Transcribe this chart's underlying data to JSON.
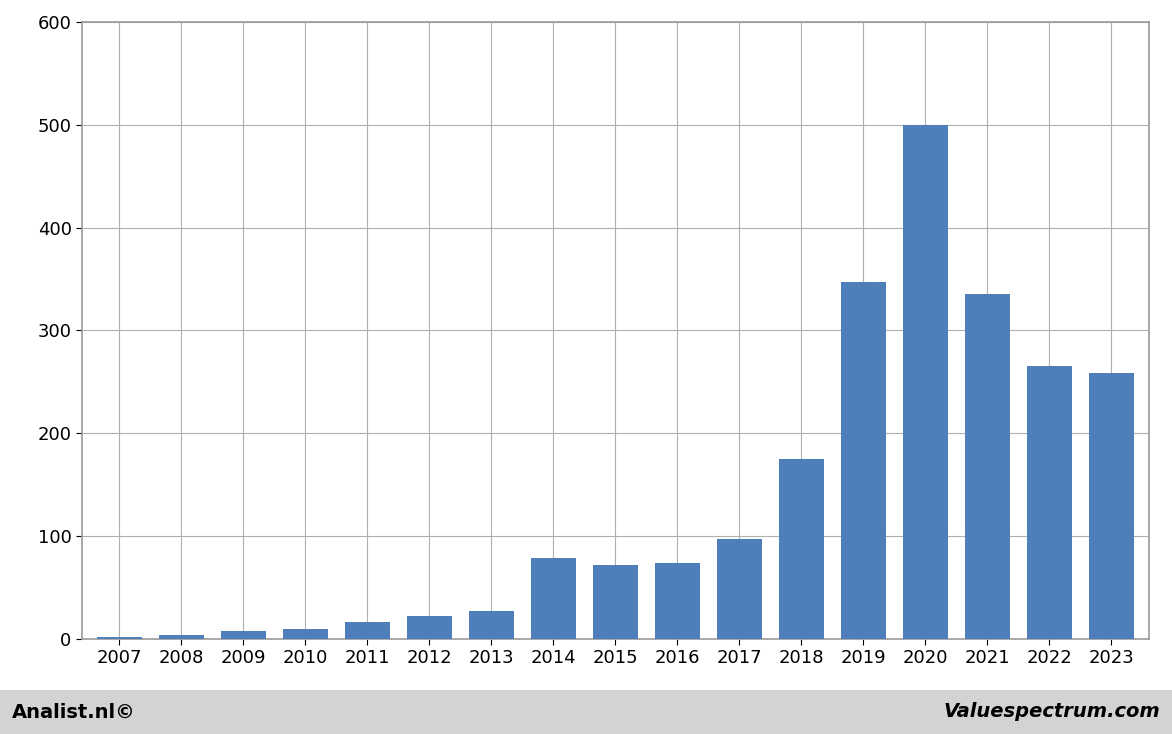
{
  "categories": [
    2007,
    2008,
    2009,
    2010,
    2011,
    2012,
    2013,
    2014,
    2015,
    2016,
    2017,
    2018,
    2019,
    2020,
    2021,
    2022,
    2023
  ],
  "values": [
    2,
    3,
    7,
    9,
    16,
    22,
    27,
    78,
    72,
    74,
    97,
    175,
    347,
    500,
    335,
    265,
    258
  ],
  "bar_color": "#4f7fba",
  "background_color": "#ffffff",
  "plot_bg_color": "#ffffff",
  "footer_bg_color": "#d3d3d3",
  "ylim": [
    0,
    600
  ],
  "yticks": [
    0,
    100,
    200,
    300,
    400,
    500,
    600
  ],
  "grid_color": "#b0b0b0",
  "border_color": "#999999",
  "tick_fontsize": 13,
  "footer_left": "Analist.nl©",
  "footer_right": "Valuespectrum.com",
  "footer_fontsize": 14,
  "bar_width": 0.72
}
